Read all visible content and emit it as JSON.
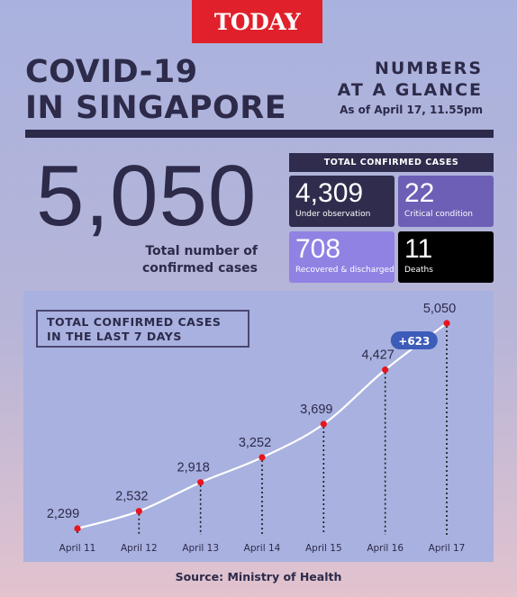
{
  "brand": {
    "logo_text": "TODAY"
  },
  "header": {
    "title_line1": "COVID-19",
    "title_line2": "IN SINGAPORE",
    "glance_line1": "NUMBERS",
    "glance_line2": "AT A GLANCE",
    "as_of": "As of April 17, 11.55pm"
  },
  "summary": {
    "total": "5,050",
    "total_label_line1": "Total number of",
    "total_label_line2": "confirmed cases",
    "panel_title": "TOTAL CONFIRMED CASES",
    "tiles": [
      {
        "value": "4,309",
        "label": "Under observation",
        "color": "#2f2c4d"
      },
      {
        "value": "22",
        "label": "Critical condition",
        "color": "#6c5fb5"
      },
      {
        "value": "708",
        "label": "Recovered & discharged",
        "color": "#8f82e3"
      },
      {
        "value": "11",
        "label": "Deaths",
        "color": "#000000"
      }
    ]
  },
  "chart_data": {
    "type": "line",
    "title": "TOTAL CONFIRMED CASES IN THE LAST 7 DAYS",
    "title_line1": "TOTAL CONFIRMED CASES",
    "title_line2": "IN THE LAST 7 DAYS",
    "categories": [
      "April 11",
      "April 12",
      "April 13",
      "April 14",
      "April 15",
      "April 16",
      "April 17"
    ],
    "values": [
      2299,
      2532,
      2918,
      3252,
      3699,
      4427,
      5050
    ],
    "value_labels": [
      "2,299",
      "2,532",
      "2,918",
      "3,252",
      "3,699",
      "4,427",
      "5,050"
    ],
    "annotation": {
      "text": "+623",
      "between": [
        "April 16",
        "April 17"
      ]
    },
    "ylim": [
      2299,
      5050
    ],
    "grid": false,
    "line_color": "#ffffff",
    "point_color": "#e8141e",
    "badge_color": "#3d5bb8"
  },
  "footer": {
    "source": "Source: Ministry of Health"
  }
}
